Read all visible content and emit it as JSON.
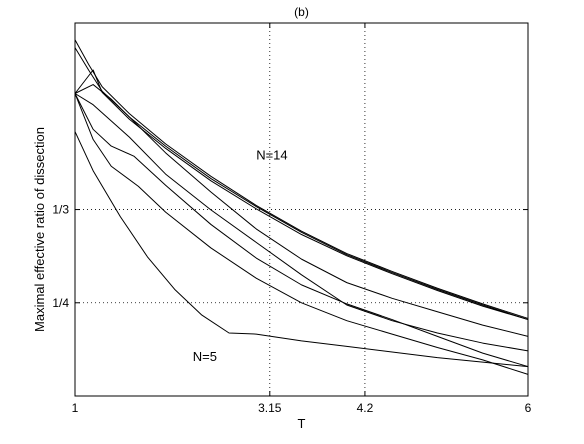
{
  "chart_data": {
    "type": "line",
    "title": "(b)",
    "xlabel": "T",
    "ylabel": "Maximal effective ratio of dissection",
    "xlim": [
      1,
      6
    ],
    "ylim": [
      0.1667,
      0.5
    ],
    "grid": "x: 3.15, 4.2; y: 1/4, 1/3",
    "xticks": [
      {
        "value": 1,
        "label": "1"
      },
      {
        "value": 3.15,
        "label": "3.15"
      },
      {
        "value": 4.2,
        "label": "4.2"
      },
      {
        "value": 6,
        "label": "6"
      }
    ],
    "yticks": [
      {
        "value": 0.3333,
        "label": "1/3"
      },
      {
        "value": 0.25,
        "label": "1/4"
      }
    ],
    "annotations": [
      {
        "text": "N=14",
        "x": 3.0,
        "y": 0.378
      },
      {
        "text": "N=5",
        "x": 2.3,
        "y": 0.198
      }
    ],
    "series": [
      {
        "x": [
          1.0,
          1.15,
          1.3,
          1.6,
          2.0,
          2.5,
          3.0,
          3.5,
          4.0,
          4.5,
          5.0,
          5.5,
          6.0
        ],
        "y": [
          0.485,
          0.463,
          0.443,
          0.419,
          0.392,
          0.363,
          0.337,
          0.314,
          0.294,
          0.278,
          0.263,
          0.249,
          0.236
        ]
      },
      {
        "x": [
          1.0,
          1.15,
          1.3,
          1.6,
          2.0,
          2.5,
          3.0,
          3.5,
          4.0,
          4.5,
          5.0,
          5.5,
          6.0
        ],
        "y": [
          0.478,
          0.458,
          0.439,
          0.416,
          0.39,
          0.361,
          0.336,
          0.313,
          0.293,
          0.277,
          0.262,
          0.248,
          0.235
        ]
      },
      {
        "x": [
          1.0,
          1.2,
          1.3,
          1.6,
          2.0,
          2.5,
          3.0,
          3.5,
          4.0,
          4.5,
          5.0,
          5.5,
          6.0
        ],
        "y": [
          0.437,
          0.458,
          0.438,
          0.414,
          0.388,
          0.359,
          0.334,
          0.311,
          0.292,
          0.276,
          0.261,
          0.247,
          0.235
        ]
      },
      {
        "x": [
          1.0,
          1.2,
          1.4,
          1.7,
          2.0,
          2.5,
          3.0,
          3.5,
          4.0,
          4.5,
          5.0,
          5.5,
          6.0
        ],
        "y": [
          0.437,
          0.445,
          0.432,
          0.408,
          0.384,
          0.349,
          0.316,
          0.289,
          0.268,
          0.254,
          0.242,
          0.23,
          0.22
        ]
      },
      {
        "x": [
          1.0,
          1.2,
          1.6,
          2.0,
          2.5,
          3.0,
          3.5,
          4.0,
          4.5,
          5.0,
          5.5,
          6.0
        ],
        "y": [
          0.437,
          0.427,
          0.398,
          0.365,
          0.333,
          0.304,
          0.275,
          0.248,
          0.234,
          0.223,
          0.214,
          0.207
        ]
      },
      {
        "x": [
          1.0,
          1.2,
          1.4,
          1.65,
          2.0,
          2.5,
          3.0,
          3.5,
          4.0,
          4.5,
          5.0,
          5.5,
          6.0
        ],
        "y": [
          0.437,
          0.405,
          0.39,
          0.381,
          0.355,
          0.32,
          0.29,
          0.266,
          0.249,
          0.235,
          0.22,
          0.205,
          0.193
        ]
      },
      {
        "x": [
          1.0,
          1.2,
          1.4,
          1.7,
          2.0,
          2.5,
          3.0,
          3.5,
          4.0,
          4.5,
          5.0,
          5.5,
          6.0
        ],
        "y": [
          0.437,
          0.396,
          0.372,
          0.354,
          0.331,
          0.299,
          0.272,
          0.25,
          0.234,
          0.222,
          0.21,
          0.199,
          0.186
        ]
      },
      {
        "x": [
          1.0,
          1.2,
          1.5,
          1.8,
          2.1,
          2.4,
          2.7,
          3.0,
          3.5,
          4.0,
          4.5,
          5.0,
          5.5,
          6.0
        ],
        "y": [
          0.403,
          0.368,
          0.327,
          0.291,
          0.262,
          0.239,
          0.223,
          0.222,
          0.216,
          0.211,
          0.206,
          0.201,
          0.197,
          0.193
        ]
      }
    ]
  }
}
